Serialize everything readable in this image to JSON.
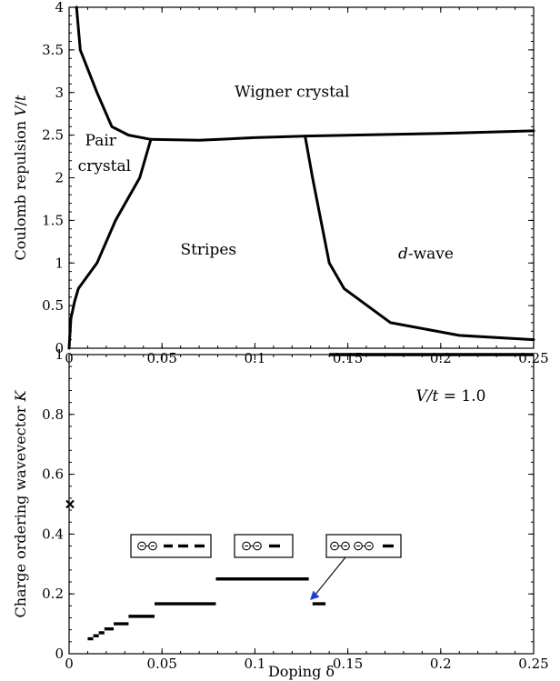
{
  "chart_data": [
    {
      "type": "line",
      "panel": "phase-diagram",
      "xlabel": "",
      "ylabel": "Coulomb repulsion V/t",
      "xlim": [
        0,
        0.25
      ],
      "ylim": [
        0,
        4
      ],
      "xticks": [
        0,
        0.05,
        0.1,
        0.15,
        0.2,
        0.25
      ],
      "xtick_labels": [
        "0",
        "0.05",
        "0.1",
        "0.15",
        "0.2",
        "0.25"
      ],
      "yticks": [
        0,
        0.5,
        1,
        1.5,
        2,
        2.5,
        3,
        3.5,
        4
      ],
      "ytick_labels": [
        "0",
        "0.5",
        "1",
        "1.5",
        "2",
        "2.5",
        "3",
        "3.5",
        "4"
      ],
      "grid": false,
      "series": [
        {
          "x": [
            0.004,
            0.006,
            0.015,
            0.023,
            0.032,
            0.044
          ],
          "y": [
            4.0,
            3.5,
            3.0,
            2.6,
            2.5,
            2.45
          ]
        },
        {
          "x": [
            0.044,
            0.07,
            0.1,
            0.128,
            0.2,
            0.25
          ],
          "y": [
            2.45,
            2.44,
            2.47,
            2.49,
            2.52,
            2.55
          ]
        },
        {
          "x": [
            0.0,
            0.001,
            0.003,
            0.005,
            0.015,
            0.025,
            0.038,
            0.044
          ],
          "y": [
            0.0,
            0.35,
            0.55,
            0.7,
            1.0,
            1.5,
            2.0,
            2.45
          ]
        },
        {
          "x": [
            0.127,
            0.131,
            0.14,
            0.148,
            0.173,
            0.21,
            0.25
          ],
          "y": [
            2.49,
            2.0,
            1.0,
            0.7,
            0.3,
            0.15,
            0.1
          ]
        }
      ],
      "annotations": [
        {
          "text": "Wigner crystal",
          "x": 0.12,
          "y": 2.95
        },
        {
          "text": "Pair",
          "x": 0.017,
          "y": 2.38
        },
        {
          "text": "crystal",
          "x": 0.019,
          "y": 2.08
        },
        {
          "text": "Stripes",
          "x": 0.075,
          "y": 1.1
        },
        {
          "text": "d-wave",
          "x": 0.192,
          "y": 1.05
        }
      ]
    },
    {
      "type": "line",
      "panel": "ordering-wavevector",
      "xlabel": "Doping δ",
      "ylabel": "Charge ordering wavevector K",
      "xlim": [
        0,
        0.25
      ],
      "ylim": [
        0,
        1
      ],
      "xticks": [
        0,
        0.05,
        0.1,
        0.15,
        0.2,
        0.25
      ],
      "xtick_labels": [
        "0",
        "0.05",
        "0.1",
        "0.15",
        "0.2",
        "0.25"
      ],
      "yticks": [
        0,
        0.2,
        0.4,
        0.6,
        0.8,
        1
      ],
      "ytick_labels": [
        "0",
        "0.2",
        "0.4",
        "0.6",
        "0.8",
        "1"
      ],
      "grid": false,
      "segments": [
        {
          "x": [
            0.01,
            0.013
          ],
          "y": 0.05
        },
        {
          "x": [
            0.013,
            0.016
          ],
          "y": 0.06
        },
        {
          "x": [
            0.016,
            0.019
          ],
          "y": 0.07
        },
        {
          "x": [
            0.019,
            0.024
          ],
          "y": 0.083
        },
        {
          "x": [
            0.024,
            0.032
          ],
          "y": 0.1
        },
        {
          "x": [
            0.032,
            0.046
          ],
          "y": 0.125
        },
        {
          "x": [
            0.046,
            0.079
          ],
          "y": 0.167
        },
        {
          "x": [
            0.079,
            0.129
          ],
          "y": 0.25
        },
        {
          "x": [
            0.131,
            0.138
          ],
          "y": 0.167
        },
        {
          "x": [
            0.14,
            0.25
          ],
          "y": 1.0
        }
      ],
      "marker_point": {
        "x": 0.0,
        "y": 0.5,
        "symbol": "x"
      },
      "annotations": [
        {
          "text": "V/t = 1.0"
        }
      ]
    }
  ]
}
